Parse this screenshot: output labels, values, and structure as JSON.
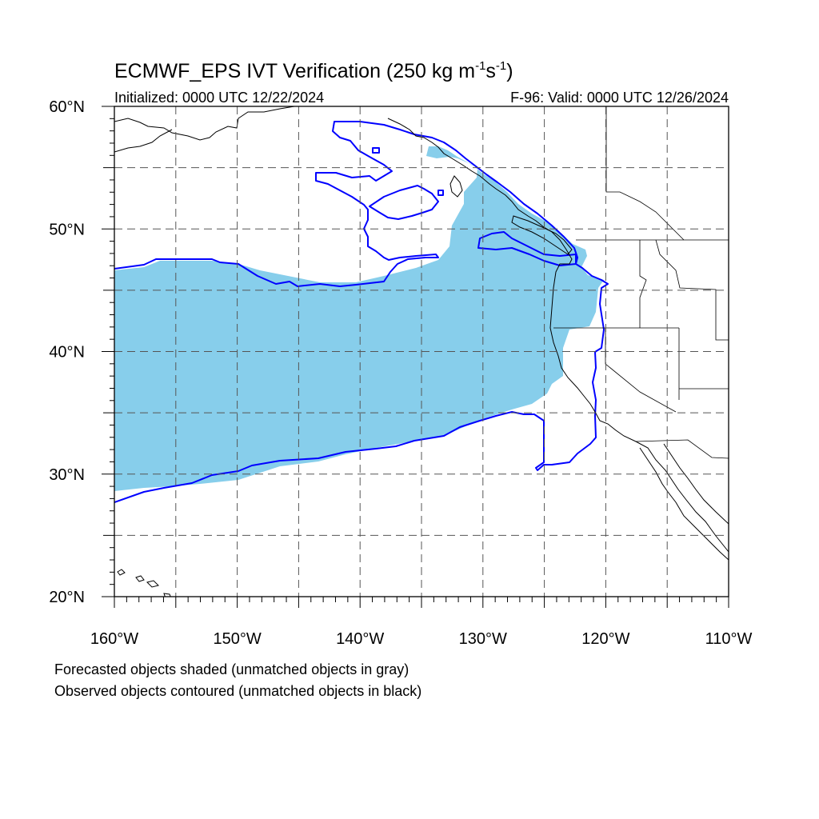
{
  "figure": {
    "title_main": "ECMWF_EPS IVT Verification (250 kg m",
    "title_exp1": "-1",
    "title_mid": "s",
    "title_exp2": "-1",
    "title_end": ")",
    "init_label": "Initialized: 0000 UTC 12/22/2024",
    "valid_label": "F-96: Valid: 0000 UTC 12/26/2024",
    "note_forecast": "Forecasted objects shaded (unmatched objects in gray)",
    "note_observed": "Observed objects contoured (unmatched objects in black)"
  },
  "map": {
    "lon_range": [
      -160,
      -110
    ],
    "lat_range": [
      20,
      60
    ],
    "lat_tick_labels": [
      {
        "lat": 60,
        "label": "60°N"
      },
      {
        "lat": 50,
        "label": "50°N"
      },
      {
        "lat": 40,
        "label": "40°N"
      },
      {
        "lat": 30,
        "label": "30°N"
      },
      {
        "lat": 20,
        "label": "20°N"
      }
    ],
    "lon_tick_labels": [
      {
        "lon": -160,
        "label": "160°W"
      },
      {
        "lon": -150,
        "label": "150°W"
      },
      {
        "lon": -140,
        "label": "140°W"
      },
      {
        "lon": -130,
        "label": "130°W"
      },
      {
        "lon": -120,
        "label": "120°W"
      },
      {
        "lon": -110,
        "label": "110°W"
      }
    ],
    "grid_lons": [
      -155,
      -150,
      -145,
      -140,
      -135,
      -130,
      -125,
      -120,
      -115
    ],
    "grid_lats": [
      25,
      30,
      35,
      40,
      45,
      50,
      55
    ],
    "colors": {
      "forecast_fill": "#87CEEB",
      "observed_contour": "#0000FF",
      "coastline": "#000000",
      "grid": "#555555"
    }
  }
}
